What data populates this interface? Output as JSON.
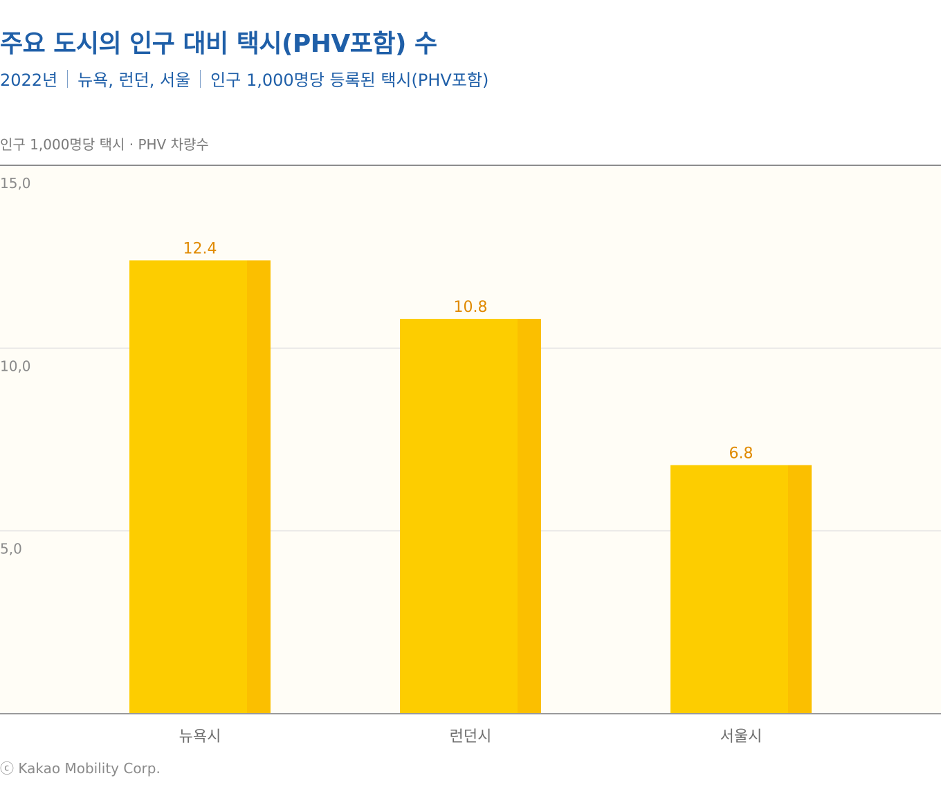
{
  "header": {
    "title": "주요 도시의 인구 대비 택시(PHV포함) 수",
    "subtitle_parts": [
      "2022년",
      "뉴욕, 런던, 서울",
      "인구 1,000명당 등록된 택시(PHV포함)"
    ]
  },
  "footer": {
    "credit": "ⓒ Kakao Mobility Corp."
  },
  "colors": {
    "title": "#1f5fa8",
    "bar_main": "#fdcd00",
    "bar_side": "#fbbf00",
    "plot_bg": "#fffdf6",
    "value_label": "#e08a00"
  },
  "chart_data": {
    "type": "bar",
    "ylabel": "인구 1,000명당 택시 · PHV 차량수",
    "categories": [
      "뉴욕시",
      "런던시",
      "서울시"
    ],
    "values": [
      12.4,
      10.8,
      6.8
    ],
    "value_labels": [
      "12.4",
      "10.8",
      "6.8"
    ],
    "ylim": [
      0,
      15
    ],
    "yticks": [
      {
        "value": 15,
        "label": "15,0"
      },
      {
        "value": 10,
        "label": "10,0"
      },
      {
        "value": 5,
        "label": "5,0"
      }
    ],
    "grid": true
  }
}
